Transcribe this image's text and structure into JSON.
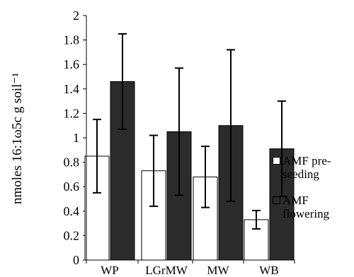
{
  "chart_data": {
    "type": "bar",
    "title": "",
    "xlabel": "",
    "ylabel": "nmoles 16:1ω5c g soil⁻¹",
    "categories": [
      "WP",
      "LGrMW",
      "MW",
      "WB"
    ],
    "ylim": [
      0,
      2
    ],
    "yticks": [
      "0",
      "0.2",
      "0.4",
      "0.6",
      "0.8",
      "1",
      "1.2",
      "1.4",
      "1.6",
      "1.8",
      "2"
    ],
    "grid": false,
    "legend_position": "right",
    "series": [
      {
        "name": "AMF pre-seeding",
        "fill": "#ffffff",
        "values": [
          0.85,
          0.73,
          0.68,
          0.33
        ],
        "error": [
          0.3,
          0.29,
          0.25,
          0.075
        ]
      },
      {
        "name": "AMF flowering",
        "fill": "#2b2b2b",
        "values": [
          1.46,
          1.05,
          1.1,
          0.91
        ],
        "error": [
          0.39,
          0.52,
          0.62,
          0.39
        ]
      }
    ]
  }
}
